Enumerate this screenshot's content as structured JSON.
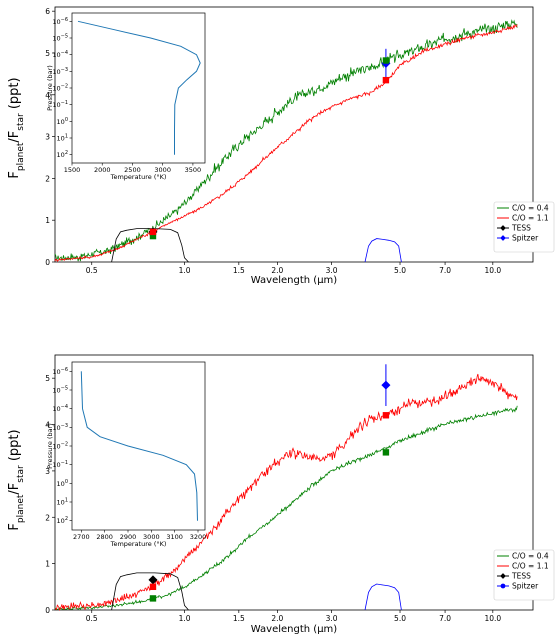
{
  "chart_data": [
    {
      "type": "line",
      "ylabel": "F_planet/F_star (ppt)",
      "xlabel": "Wavelength (µm)",
      "xscale": "log",
      "xlim": [
        0.38,
        13.5
      ],
      "ylim": [
        0,
        6.1
      ],
      "xticks": [
        0.5,
        1.0,
        1.5,
        2.0,
        3.0,
        5.0,
        7.0,
        10.0
      ],
      "xtick_labels": [
        "0.5",
        "1.0",
        "1.5",
        "2.0",
        "3.0",
        "5.0",
        "7.0",
        "10.0"
      ],
      "yticks": [
        0,
        1,
        2,
        3,
        4,
        5,
        6
      ],
      "legend_position": "bottom-right",
      "legend": [
        {
          "label": "C/O = 0.4",
          "color": "#008000",
          "marker": "line"
        },
        {
          "label": "C/O = 1.1",
          "color": "#ff0000",
          "marker": "line"
        },
        {
          "label": "TESS",
          "color": "#000000",
          "marker": "diamond"
        },
        {
          "label": "Spitzer",
          "color": "#0000ff",
          "marker": "diamond"
        }
      ],
      "series": [
        {
          "name": "C/O = 0.4",
          "color": "#008000",
          "noise": 0.12,
          "x": [
            0.38,
            0.45,
            0.55,
            0.62,
            0.7,
            0.8,
            0.9,
            1.0,
            1.1,
            1.25,
            1.4,
            1.6,
            1.8,
            2.0,
            2.2,
            2.5,
            2.8,
            3.0,
            3.3,
            3.6,
            4.0,
            4.5,
            5.0,
            6.0,
            7.0,
            8.0,
            10.0,
            12.0
          ],
          "y": [
            0.1,
            0.12,
            0.25,
            0.4,
            0.6,
            0.85,
            1.1,
            1.4,
            1.75,
            2.2,
            2.6,
            3.0,
            3.3,
            3.6,
            3.85,
            4.05,
            4.2,
            4.3,
            4.45,
            4.55,
            4.65,
            4.8,
            4.95,
            5.15,
            5.35,
            5.45,
            5.6,
            5.75
          ]
        },
        {
          "name": "C/O = 1.1",
          "color": "#ff0000",
          "noise": 0.04,
          "x": [
            0.38,
            0.5,
            0.6,
            0.7,
            0.8,
            0.9,
            1.0,
            1.2,
            1.4,
            1.6,
            1.8,
            2.0,
            2.2,
            2.5,
            2.8,
            3.0,
            3.3,
            3.6,
            4.0,
            4.5,
            5.0,
            6.0,
            7.0,
            8.0,
            10.0,
            12.0
          ],
          "y": [
            0.05,
            0.12,
            0.3,
            0.55,
            0.75,
            0.95,
            1.1,
            1.4,
            1.75,
            2.1,
            2.45,
            2.75,
            3.0,
            3.35,
            3.6,
            3.7,
            3.85,
            3.95,
            4.05,
            4.3,
            4.7,
            5.05,
            5.2,
            5.35,
            5.5,
            5.65
          ]
        },
        {
          "name": "TESS bandpass",
          "color": "#000000",
          "noise": 0,
          "x": [
            0.58,
            0.6,
            0.62,
            0.65,
            0.7,
            0.8,
            0.9,
            0.95,
            0.98,
            1.0,
            1.03
          ],
          "y": [
            0,
            0.55,
            0.72,
            0.76,
            0.8,
            0.8,
            0.78,
            0.7,
            0.4,
            0.1,
            0
          ]
        },
        {
          "name": "Spitzer bandpass",
          "color": "#0000ff",
          "noise": 0,
          "x": [
            3.85,
            3.95,
            4.05,
            4.2,
            4.4,
            4.6,
            4.8,
            4.95,
            5.05
          ],
          "y": [
            0,
            0.38,
            0.5,
            0.56,
            0.54,
            0.52,
            0.48,
            0.38,
            0
          ]
        }
      ],
      "points": [
        {
          "name": "TESS",
          "x": 0.79,
          "y": 0.72,
          "err": 0.06,
          "color": "#000000"
        },
        {
          "name": "C/O = 0.4",
          "x": 0.79,
          "y": 0.62,
          "err": 0,
          "color": "#008000"
        },
        {
          "name": "C/O = 1.1",
          "x": 0.79,
          "y": 0.72,
          "err": 0,
          "color": "#ff0000"
        },
        {
          "name": "Spitzer",
          "x": 4.5,
          "y": 4.75,
          "err": 0.35,
          "color": "#0000ff"
        },
        {
          "name": "C/O = 0.4",
          "x": 4.5,
          "y": 4.82,
          "err": 0,
          "color": "#008000"
        },
        {
          "name": "C/O = 1.1",
          "x": 4.5,
          "y": 4.35,
          "err": 0,
          "color": "#ff0000"
        }
      ],
      "inset": {
        "xlabel": "Temperature (°K)",
        "ylabel": "Pressure (bar)",
        "xlim": [
          1500,
          3700
        ],
        "xticks": [
          1500,
          2000,
          2500,
          3000,
          3500
        ],
        "xtick_labels": [
          "1500",
          "2000",
          "2500",
          "3000",
          "3500"
        ],
        "ylim_exp": [
          -6.5,
          2.5
        ],
        "ytick_exps": [
          -6,
          -5,
          -4,
          -3,
          -2,
          -1,
          0,
          1,
          2
        ],
        "color": "#1f77b4",
        "profile_T": [
          1600,
          2200,
          2800,
          3300,
          3560,
          3620,
          3560,
          3400,
          3260,
          3200,
          3195,
          3195
        ],
        "profile_logP": [
          -6.0,
          -5.5,
          -5.0,
          -4.5,
          -4.0,
          -3.5,
          -3.0,
          -2.5,
          -2.0,
          -1.0,
          0.5,
          2.0
        ]
      }
    },
    {
      "type": "line",
      "ylabel": "F_planet/F_star (ppt)",
      "xlabel": "Wavelength (µm)",
      "xscale": "log",
      "xlim": [
        0.38,
        13.5
      ],
      "ylim": [
        0,
        5.5
      ],
      "xticks": [
        0.5,
        1.0,
        1.5,
        2.0,
        3.0,
        5.0,
        7.0,
        10.0
      ],
      "xtick_labels": [
        "0.5",
        "1.0",
        "1.5",
        "2.0",
        "3.0",
        "5.0",
        "7.0",
        "10.0"
      ],
      "yticks": [
        0,
        1,
        2,
        3,
        4,
        5
      ],
      "legend_position": "bottom-right",
      "legend": [
        {
          "label": "C/O = 0.4",
          "color": "#008000",
          "marker": "line"
        },
        {
          "label": "C/O = 1.1",
          "color": "#ff0000",
          "marker": "line"
        },
        {
          "label": "TESS",
          "color": "#000000",
          "marker": "diamond"
        },
        {
          "label": "Spitzer",
          "color": "#0000ff",
          "marker": "circle"
        }
      ],
      "series": [
        {
          "name": "C/O = 0.4",
          "color": "#008000",
          "noise": 0.04,
          "x": [
            0.38,
            0.5,
            0.6,
            0.7,
            0.8,
            0.9,
            1.0,
            1.2,
            1.4,
            1.6,
            1.8,
            2.0,
            2.3,
            2.6,
            3.0,
            3.5,
            4.0,
            4.5,
            5.0,
            6.0,
            7.0,
            8.0,
            10.0,
            12.0
          ],
          "y": [
            0.02,
            0.05,
            0.1,
            0.17,
            0.25,
            0.35,
            0.5,
            0.85,
            1.2,
            1.55,
            1.8,
            2.05,
            2.4,
            2.7,
            3.0,
            3.2,
            3.35,
            3.5,
            3.65,
            3.85,
            4.0,
            4.1,
            4.25,
            4.35
          ]
        },
        {
          "name": "C/O = 1.1",
          "color": "#ff0000",
          "noise": 0.09,
          "x": [
            0.38,
            0.5,
            0.6,
            0.7,
            0.8,
            0.9,
            1.0,
            1.2,
            1.4,
            1.6,
            1.8,
            2.0,
            2.2,
            2.5,
            2.8,
            3.0,
            3.3,
            3.6,
            4.0,
            4.5,
            5.0,
            5.5,
            6.0,
            7.0,
            8.0,
            9.0,
            10.0,
            11.0,
            12.0
          ],
          "y": [
            0.05,
            0.1,
            0.2,
            0.35,
            0.55,
            0.8,
            1.1,
            1.65,
            2.15,
            2.6,
            2.95,
            3.2,
            3.4,
            3.3,
            3.25,
            3.35,
            3.55,
            3.9,
            4.1,
            4.2,
            4.35,
            4.5,
            4.45,
            4.6,
            4.8,
            5.0,
            4.9,
            4.7,
            4.55
          ]
        },
        {
          "name": "TESS bandpass",
          "color": "#000000",
          "noise": 0,
          "x": [
            0.58,
            0.6,
            0.62,
            0.65,
            0.7,
            0.8,
            0.9,
            0.95,
            0.98,
            1.0,
            1.03
          ],
          "y": [
            0,
            0.55,
            0.72,
            0.76,
            0.8,
            0.8,
            0.78,
            0.7,
            0.4,
            0.1,
            0
          ]
        },
        {
          "name": "Spitzer bandpass",
          "color": "#0000ff",
          "noise": 0,
          "x": [
            3.85,
            3.95,
            4.05,
            4.2,
            4.4,
            4.6,
            4.8,
            4.95,
            5.05
          ],
          "y": [
            0,
            0.38,
            0.5,
            0.56,
            0.54,
            0.52,
            0.48,
            0.38,
            0
          ]
        }
      ],
      "points": [
        {
          "name": "TESS",
          "x": 0.79,
          "y": 0.65,
          "err": 0.05,
          "color": "#000000"
        },
        {
          "name": "C/O = 1.1",
          "x": 0.79,
          "y": 0.5,
          "err": 0,
          "color": "#ff0000"
        },
        {
          "name": "C/O = 0.4",
          "x": 0.79,
          "y": 0.25,
          "err": 0,
          "color": "#008000"
        },
        {
          "name": "Spitzer",
          "x": 4.5,
          "y": 4.85,
          "err": 0.45,
          "color": "#0000ff"
        },
        {
          "name": "C/O = 1.1",
          "x": 4.5,
          "y": 4.2,
          "err": 0,
          "color": "#ff0000"
        },
        {
          "name": "C/O = 0.4",
          "x": 4.5,
          "y": 3.4,
          "err": 0,
          "color": "#008000"
        }
      ],
      "inset": {
        "xlabel": "Temperature (°K)",
        "ylabel": "Pressure (bar)",
        "xlim": [
          2660,
          3230
        ],
        "xticks": [
          2700,
          2800,
          2900,
          3000,
          3100,
          3200
        ],
        "xtick_labels": [
          "2700",
          "2800",
          "2900",
          "3000",
          "3100",
          "3200"
        ],
        "ylim_exp": [
          -6.5,
          2.5
        ],
        "ytick_exps": [
          -6,
          -5,
          -4,
          -3,
          -2,
          -1,
          0,
          1,
          2
        ],
        "color": "#1f77b4",
        "profile_T": [
          2700,
          2705,
          2725,
          2780,
          2900,
          3050,
          3150,
          3185,
          3195,
          3198
        ],
        "profile_logP": [
          -6.0,
          -4.0,
          -3.0,
          -2.5,
          -2.0,
          -1.5,
          -1.0,
          -0.5,
          0.5,
          2.0
        ]
      }
    }
  ]
}
